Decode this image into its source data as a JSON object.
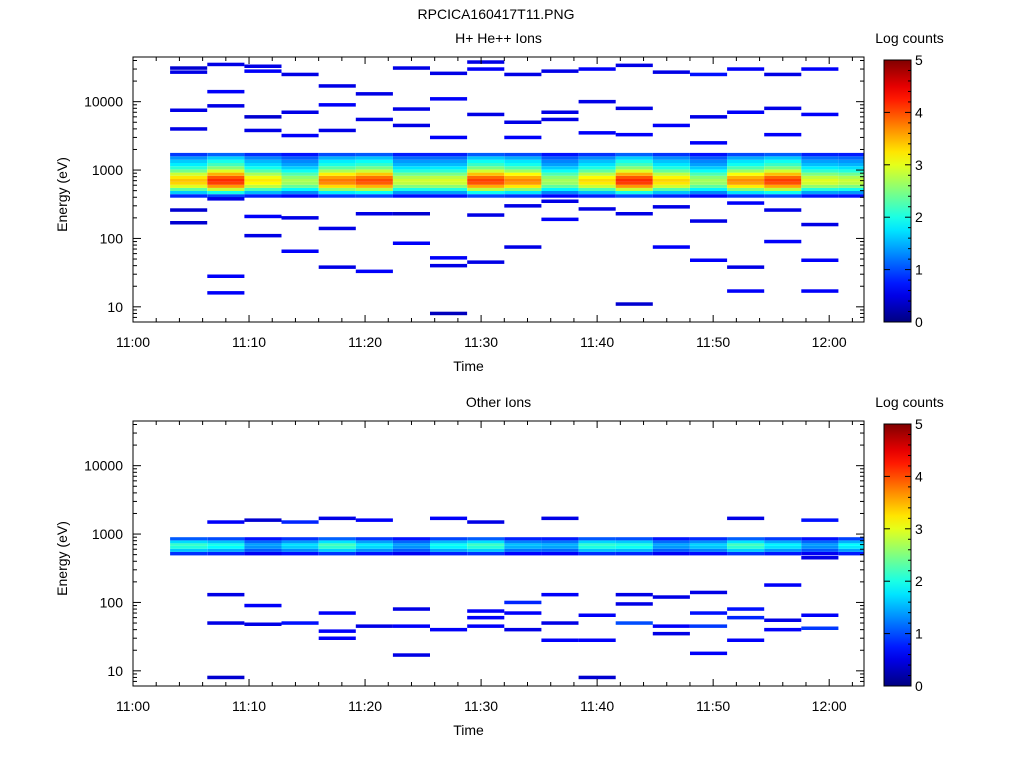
{
  "figure_title": "RPCICA160417T11.PNG",
  "chart_data": [
    {
      "type": "heatmap",
      "title": "H+ He++ Ions",
      "xlabel": "Time",
      "ylabel": "Energy (eV)",
      "x_ticks": [
        "11:00",
        "11:10",
        "11:20",
        "11:30",
        "11:40",
        "11:50",
        "12:00"
      ],
      "x_range_minutes": [
        0,
        63
      ],
      "y_scale": "log",
      "y_ticks": [
        "10",
        "100",
        "1000",
        "10000"
      ],
      "y_range": [
        6,
        45000
      ],
      "colorbar_label": "Log counts",
      "colorbar_ticks": [
        "0",
        "1",
        "2",
        "3",
        "4",
        "5"
      ],
      "colorbar_range": [
        0,
        5
      ],
      "time_bins_minutes": [
        3.2,
        6.4,
        9.6,
        12.8,
        16.0,
        19.2,
        22.4,
        25.6,
        28.8,
        32.0,
        35.2,
        38.4,
        41.6,
        44.8,
        48.0,
        51.2,
        54.4,
        57.6,
        60.8
      ],
      "main_band": {
        "energies": [
          420,
          470,
          520,
          580,
          640,
          700,
          780,
          870,
          970,
          1080,
          1200,
          1340,
          1500,
          1680
        ],
        "profile": [
          0.9,
          1.8,
          2.6,
          3.3,
          3.7,
          3.8,
          3.6,
          3.2,
          2.7,
          2.3,
          2.0,
          1.8,
          1.5,
          1.0
        ]
      },
      "sparse_points": [
        [
          1,
          16,
          0.6
        ],
        [
          1,
          28,
          0.6
        ],
        [
          1,
          380,
          0.5
        ],
        [
          1,
          8700,
          0.5
        ],
        [
          1,
          14000,
          0.6
        ],
        [
          1,
          35000,
          0.5
        ],
        [
          0,
          170,
          0.4
        ],
        [
          0,
          260,
          0.4
        ],
        [
          0,
          4000,
          0.5
        ],
        [
          0,
          7500,
          0.5
        ],
        [
          0,
          27000,
          0.5
        ],
        [
          0,
          31000,
          0.4
        ],
        [
          2,
          110,
          0.5
        ],
        [
          2,
          210,
          0.6
        ],
        [
          2,
          3800,
          0.5
        ],
        [
          2,
          6000,
          0.4
        ],
        [
          2,
          28000,
          0.6
        ],
        [
          2,
          33000,
          0.5
        ],
        [
          3,
          65,
          0.6
        ],
        [
          3,
          200,
          0.5
        ],
        [
          3,
          3200,
          0.6
        ],
        [
          3,
          7000,
          0.5
        ],
        [
          3,
          25000,
          0.5
        ],
        [
          4,
          38,
          0.5
        ],
        [
          4,
          140,
          0.5
        ],
        [
          4,
          3800,
          0.5
        ],
        [
          4,
          9000,
          0.6
        ],
        [
          4,
          17000,
          0.5
        ],
        [
          5,
          33,
          0.6
        ],
        [
          5,
          230,
          0.5
        ],
        [
          5,
          5500,
          0.5
        ],
        [
          5,
          13000,
          0.5
        ],
        [
          6,
          85,
          0.6
        ],
        [
          6,
          230,
          0.4
        ],
        [
          6,
          4500,
          0.5
        ],
        [
          6,
          7800,
          0.5
        ],
        [
          6,
          31000,
          0.5
        ],
        [
          7,
          8,
          0.3
        ],
        [
          7,
          40,
          0.5
        ],
        [
          7,
          52,
          0.6
        ],
        [
          7,
          3000,
          0.6
        ],
        [
          7,
          11000,
          0.6
        ],
        [
          7,
          26000,
          0.5
        ],
        [
          8,
          45,
          0.5
        ],
        [
          8,
          220,
          0.5
        ],
        [
          8,
          6500,
          0.5
        ],
        [
          8,
          30000,
          0.6
        ],
        [
          8,
          38000,
          0.5
        ],
        [
          9,
          75,
          0.5
        ],
        [
          9,
          300,
          0.5
        ],
        [
          9,
          3000,
          0.6
        ],
        [
          9,
          5000,
          0.5
        ],
        [
          9,
          25000,
          0.5
        ],
        [
          10,
          190,
          0.6
        ],
        [
          10,
          350,
          0.5
        ],
        [
          10,
          5500,
          0.5
        ],
        [
          10,
          7000,
          0.5
        ],
        [
          10,
          28000,
          0.5
        ],
        [
          11,
          270,
          0.5
        ],
        [
          11,
          3500,
          0.6
        ],
        [
          11,
          10000,
          0.5
        ],
        [
          11,
          30000,
          0.6
        ],
        [
          12,
          11,
          0.4
        ],
        [
          12,
          230,
          0.5
        ],
        [
          12,
          3300,
          0.6
        ],
        [
          12,
          8000,
          0.5
        ],
        [
          12,
          34000,
          0.5
        ],
        [
          13,
          75,
          0.6
        ],
        [
          13,
          290,
          0.5
        ],
        [
          13,
          4500,
          0.6
        ],
        [
          13,
          27000,
          0.5
        ],
        [
          14,
          48,
          0.6
        ],
        [
          14,
          180,
          0.5
        ],
        [
          14,
          2500,
          0.6
        ],
        [
          14,
          6000,
          0.5
        ],
        [
          14,
          25000,
          0.7
        ],
        [
          15,
          17,
          0.6
        ],
        [
          15,
          38,
          0.5
        ],
        [
          15,
          330,
          0.6
        ],
        [
          15,
          7000,
          0.6
        ],
        [
          15,
          30000,
          0.6
        ],
        [
          16,
          90,
          0.6
        ],
        [
          16,
          260,
          0.5
        ],
        [
          16,
          3300,
          0.6
        ],
        [
          16,
          8000,
          0.5
        ],
        [
          16,
          25000,
          0.5
        ],
        [
          17,
          17,
          0.6
        ],
        [
          17,
          48,
          0.6
        ],
        [
          17,
          160,
          0.5
        ],
        [
          17,
          6500,
          0.6
        ],
        [
          17,
          30000,
          0.6
        ]
      ]
    },
    {
      "type": "heatmap",
      "title": "Other Ions",
      "xlabel": "Time",
      "ylabel": "Energy (eV)",
      "x_ticks": [
        "11:00",
        "11:10",
        "11:20",
        "11:30",
        "11:40",
        "11:50",
        "12:00"
      ],
      "x_range_minutes": [
        0,
        63
      ],
      "y_scale": "log",
      "y_ticks": [
        "10",
        "100",
        "1000",
        "10000"
      ],
      "y_range": [
        6,
        45000
      ],
      "colorbar_label": "Log counts",
      "colorbar_ticks": [
        "0",
        "1",
        "2",
        "3",
        "4",
        "5"
      ],
      "colorbar_range": [
        0,
        5
      ],
      "time_bins_minutes": [
        3.2,
        6.4,
        9.6,
        12.8,
        16.0,
        19.2,
        22.4,
        25.6,
        28.8,
        32.0,
        35.2,
        38.4,
        41.6,
        44.8,
        48.0,
        51.2,
        54.4,
        57.6,
        60.8
      ],
      "main_band": {
        "energies": [
          520,
          580,
          640,
          700,
          770,
          850
        ],
        "profile": [
          0.8,
          1.5,
          1.9,
          2.0,
          1.6,
          1.0
        ]
      },
      "sparse_points": [
        [
          1,
          8,
          0.4
        ],
        [
          1,
          50,
          0.5
        ],
        [
          1,
          130,
          0.5
        ],
        [
          1,
          1500,
          0.6
        ],
        [
          2,
          48,
          0.5
        ],
        [
          2,
          90,
          0.6
        ],
        [
          2,
          1600,
          0.4
        ],
        [
          3,
          50,
          0.7
        ],
        [
          3,
          1500,
          0.8
        ],
        [
          4,
          30,
          0.6
        ],
        [
          4,
          38,
          0.6
        ],
        [
          4,
          70,
          0.6
        ],
        [
          4,
          1700,
          0.5
        ],
        [
          5,
          45,
          0.5
        ],
        [
          5,
          1600,
          0.6
        ],
        [
          6,
          17,
          0.5
        ],
        [
          6,
          45,
          0.6
        ],
        [
          6,
          80,
          0.5
        ],
        [
          7,
          40,
          0.6
        ],
        [
          7,
          1700,
          0.6
        ],
        [
          8,
          45,
          0.6
        ],
        [
          8,
          60,
          0.6
        ],
        [
          8,
          75,
          0.6
        ],
        [
          8,
          1500,
          0.5
        ],
        [
          9,
          40,
          0.5
        ],
        [
          9,
          100,
          0.8
        ],
        [
          9,
          70,
          0.6
        ],
        [
          10,
          28,
          0.6
        ],
        [
          10,
          50,
          0.5
        ],
        [
          10,
          130,
          0.6
        ],
        [
          10,
          1700,
          0.5
        ],
        [
          11,
          8,
          0.4
        ],
        [
          11,
          28,
          0.6
        ],
        [
          11,
          65,
          0.6
        ],
        [
          12,
          50,
          1.0
        ],
        [
          12,
          95,
          0.5
        ],
        [
          12,
          130,
          0.5
        ],
        [
          13,
          35,
          0.5
        ],
        [
          13,
          45,
          0.6
        ],
        [
          13,
          120,
          0.5
        ],
        [
          14,
          18,
          0.6
        ],
        [
          14,
          45,
          0.9
        ],
        [
          14,
          70,
          0.7
        ],
        [
          14,
          140,
          0.5
        ],
        [
          15,
          28,
          0.6
        ],
        [
          15,
          60,
          0.8
        ],
        [
          15,
          80,
          0.7
        ],
        [
          15,
          1700,
          0.5
        ],
        [
          16,
          40,
          0.6
        ],
        [
          16,
          55,
          0.5
        ],
        [
          16,
          180,
          0.6
        ],
        [
          17,
          42,
          0.9
        ],
        [
          17,
          65,
          0.6
        ],
        [
          17,
          450,
          0.5
        ],
        [
          17,
          1600,
          0.7
        ]
      ]
    }
  ]
}
